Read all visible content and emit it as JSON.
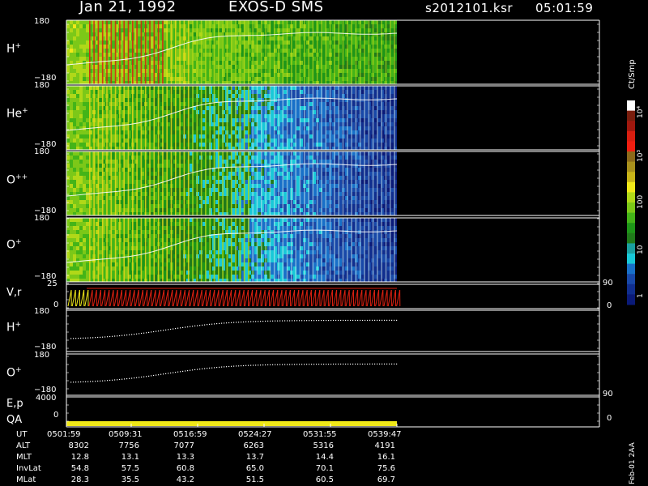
{
  "header": {
    "date": "Jan 21, 1992",
    "instrument": "EXOS-D SMS",
    "file": "s2012101.ksr",
    "time": "05:01:59"
  },
  "panels": [
    {
      "id": "h-plus",
      "label": "H",
      "sup": "+",
      "ytop": "180",
      "ybot": "−180"
    },
    {
      "id": "he-plus",
      "label": "He",
      "sup": "+",
      "ytop": "180",
      "ybot": "−180"
    },
    {
      "id": "o-pp",
      "label": "O",
      "sup": "++",
      "ytop": "180",
      "ybot": "−180"
    },
    {
      "id": "o-plus",
      "label": "O",
      "sup": "+",
      "ytop": "180",
      "ybot": "−180"
    }
  ],
  "vr_panel": {
    "label": "V,r",
    "ytop": "25",
    "ybot": "0",
    "right_top": "90",
    "right_bot": "0"
  },
  "line_panels": [
    {
      "id": "h-plus-line",
      "label": "H",
      "sup": "+",
      "ytop": "180",
      "ybot": "−180"
    },
    {
      "id": "o-plus-line",
      "label": "O",
      "sup": "+",
      "ytop": "180",
      "ybot": "−180"
    }
  ],
  "ep_panel": {
    "label1": "E,p",
    "label2": "QA",
    "ytop": "4000",
    "ybot": "0",
    "right_top": "90",
    "right_bot": "0"
  },
  "colorbar": {
    "title": "Ct/Smp",
    "ticks": [
      "10⁴",
      "10³",
      "100",
      "10",
      "1"
    ],
    "colors": [
      "#ffffff",
      "#7a1e0e",
      "#a0180e",
      "#d81e10",
      "#f01e10",
      "#8c6a1a",
      "#a8901c",
      "#c8b418",
      "#f0e818",
      "#b0d818",
      "#7cc818",
      "#44b418",
      "#1e9618",
      "#207a1a",
      "#1aa0a0",
      "#18c8d8",
      "#1870c8",
      "#1848a8",
      "#102e8e",
      "#0a1a78"
    ]
  },
  "chart_data": {
    "type": "heatmap",
    "title": "Jan 21, 1992 EXOS-D SMS",
    "x_ticks": [
      "0501:59",
      "0509:31",
      "0516:59",
      "0524:27",
      "0531:55",
      "0539:47"
    ],
    "ephemeris": {
      "rows": [
        {
          "label": "UT",
          "values": [
            "0501:59",
            "0509:31",
            "0516:59",
            "0524:27",
            "0531:55",
            "0539:47"
          ]
        },
        {
          "label": "ALT",
          "values": [
            "8302",
            "7756",
            "7077",
            "6263",
            "5316",
            "4191"
          ]
        },
        {
          "label": "MLT",
          "values": [
            "12.8",
            "13.1",
            "13.3",
            "13.7",
            "14.4",
            "16.1"
          ]
        },
        {
          "label": "InvLat",
          "values": [
            "54.8",
            "57.5",
            "60.8",
            "65.0",
            "70.1",
            "75.6"
          ]
        },
        {
          "label": "MLat",
          "values": [
            "28.3",
            "35.5",
            "43.2",
            "51.5",
            "60.5",
            "69.7"
          ]
        }
      ]
    },
    "colorbar_range": [
      1,
      10000
    ],
    "colorbar_scale": "log"
  },
  "side_label": "Feb-01 2AA"
}
